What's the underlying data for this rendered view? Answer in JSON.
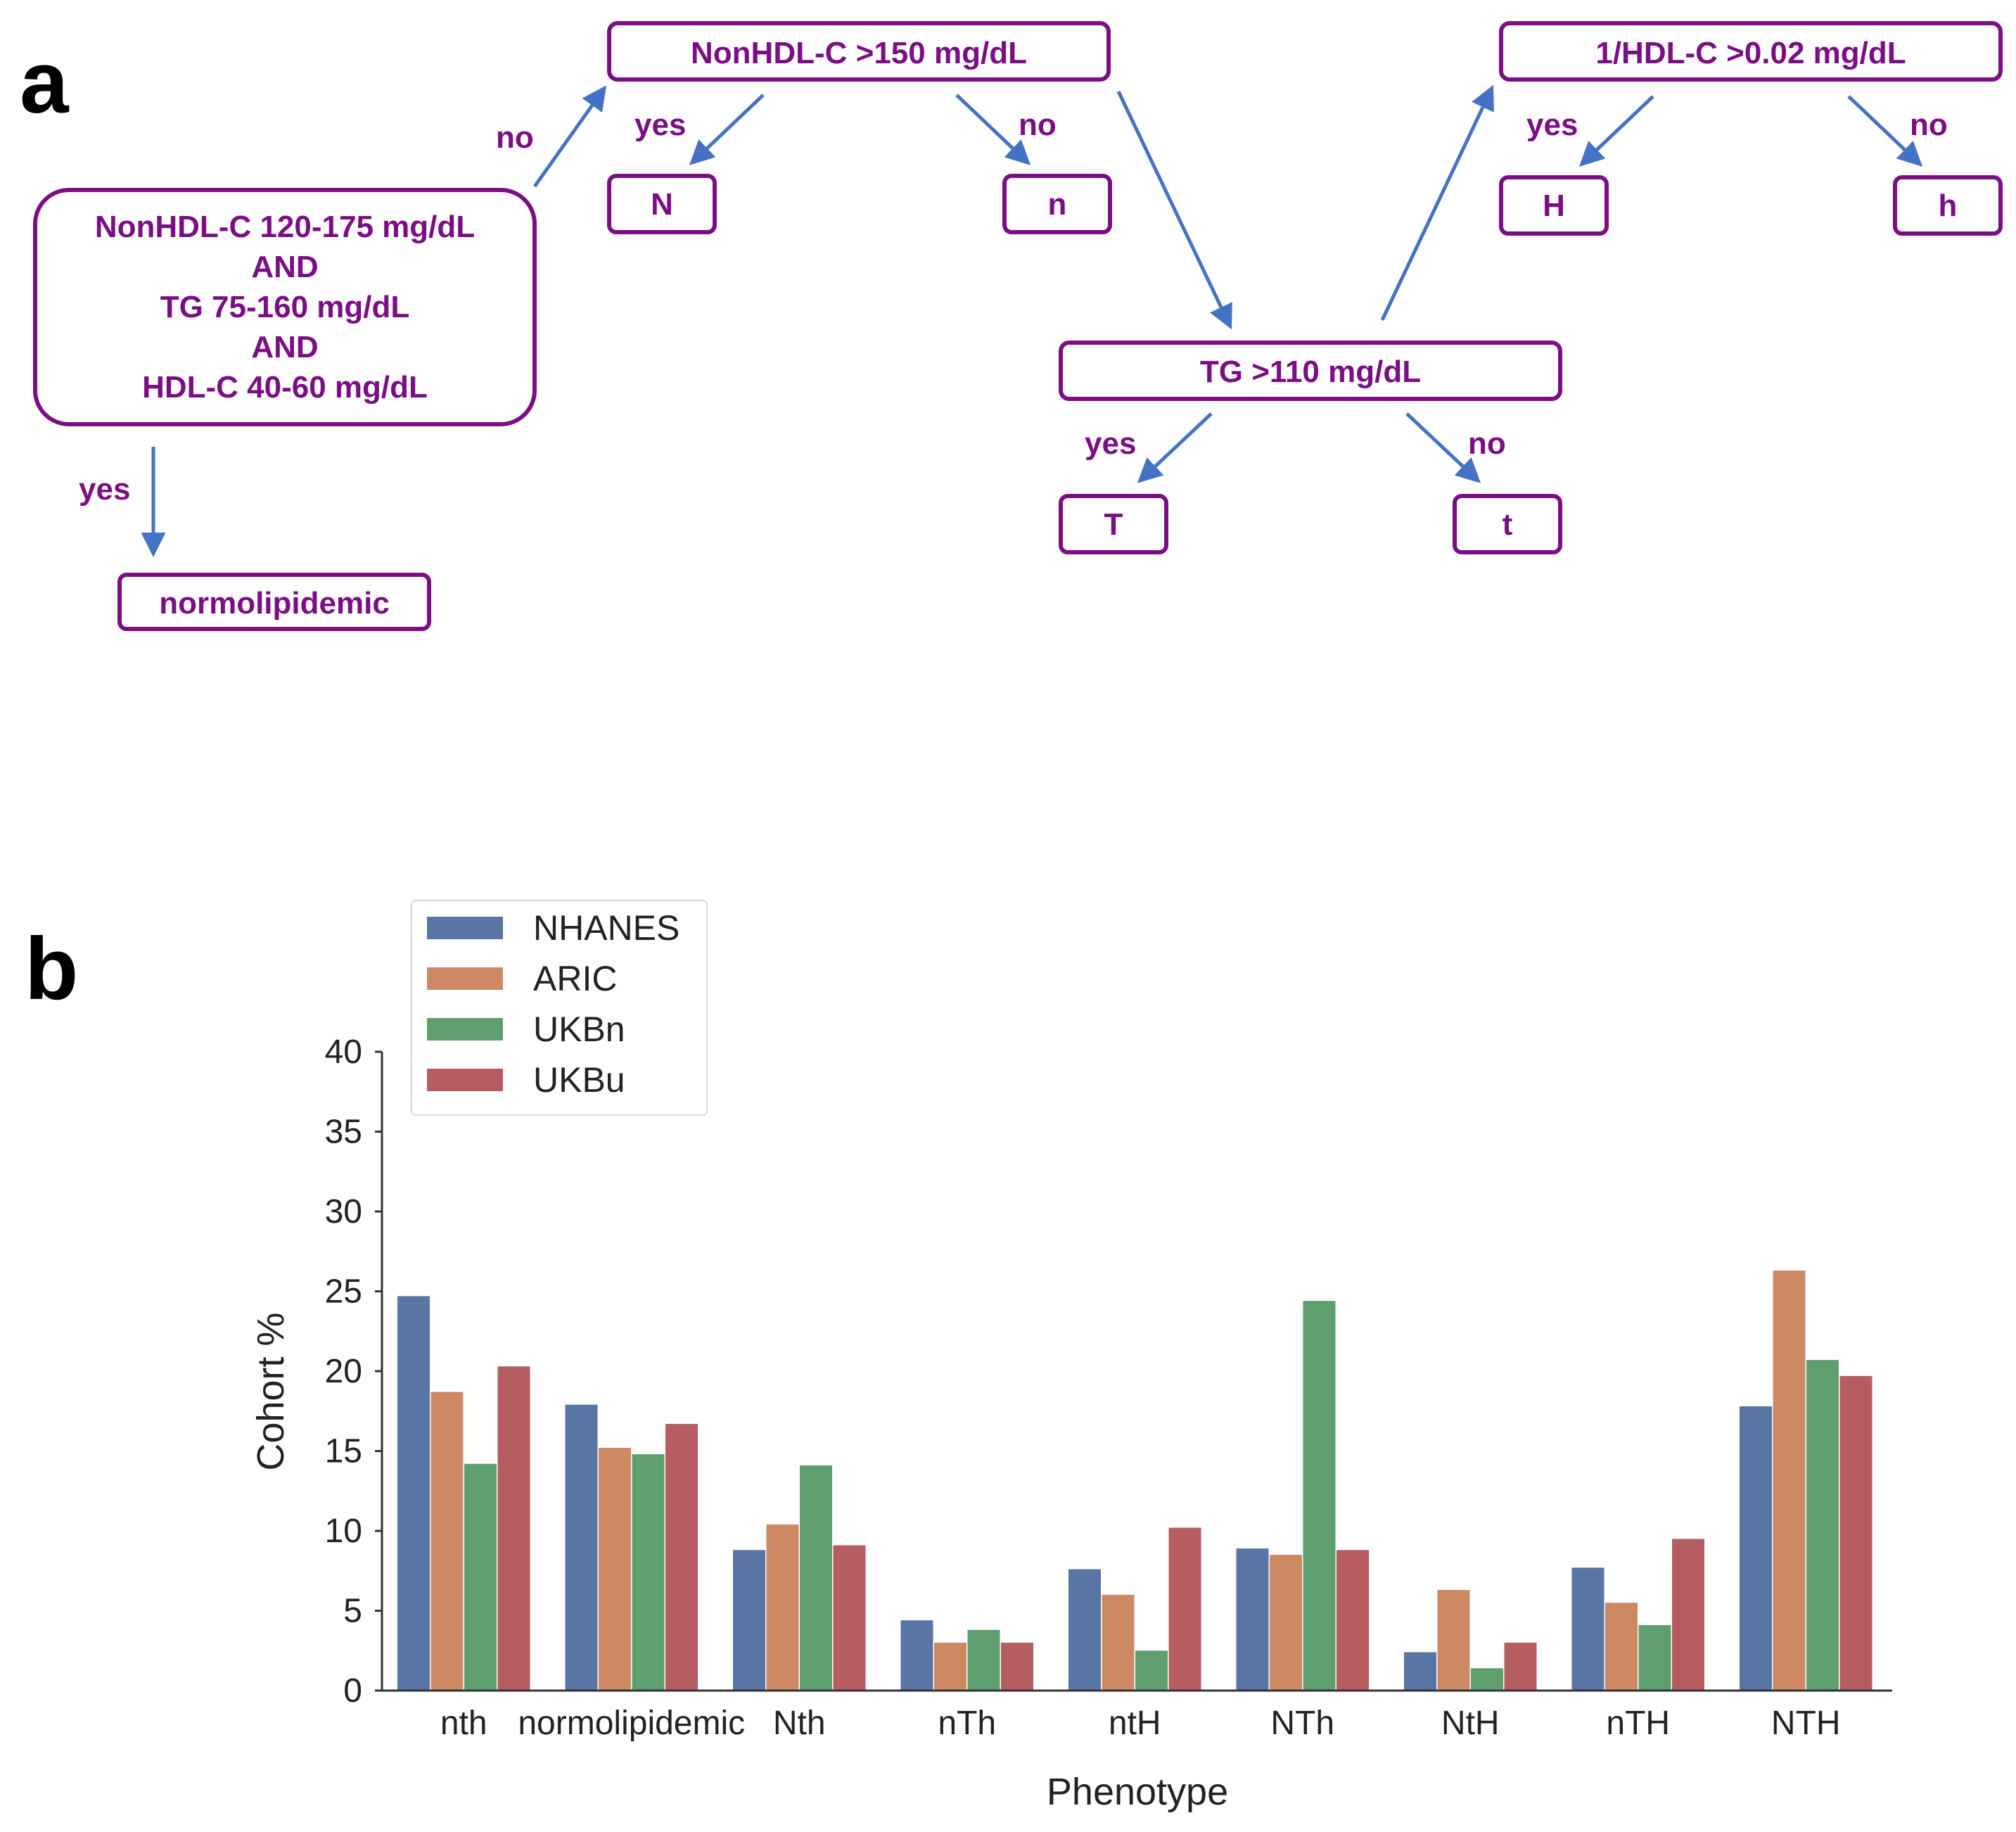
{
  "panels": {
    "a": "a",
    "b": "b"
  },
  "flowchart": {
    "nodes": {
      "root": {
        "lines": [
          "NonHDL-C 120-175 mg/dL",
          "AND",
          "TG 75-160 mg/dL",
          "AND",
          "HDL-C 40-60 mg/dL"
        ]
      },
      "normo": {
        "text": "normolipidemic"
      },
      "nonhdl": {
        "text": "NonHDL-C >150 mg/dL"
      },
      "N": {
        "text": "N"
      },
      "n": {
        "text": "n"
      },
      "tg": {
        "text": "TG >110 mg/dL"
      },
      "T": {
        "text": "T"
      },
      "t": {
        "text": "t"
      },
      "hdl": {
        "text": "1/HDL-C >0.02 mg/dL"
      },
      "H": {
        "text": "H"
      },
      "h": {
        "text": "h"
      }
    },
    "edge_labels": {
      "root_no": "no",
      "root_yes": "yes",
      "nonhdl_yes": "yes",
      "nonhdl_no": "no",
      "tg_yes": "yes",
      "tg_no": "no",
      "hdl_yes": "yes",
      "hdl_no": "no"
    }
  },
  "colors": {
    "node_text": "#7b0e84",
    "arrow": "#4472c4",
    "NHANES": "#5875a4",
    "ARIC": "#cc8963",
    "UKBn": "#5f9e6e",
    "UKBu": "#b55d60"
  },
  "chart_data": {
    "type": "bar",
    "title": "",
    "xlabel": "Phenotype",
    "ylabel": "Cohort %",
    "ylim": [
      0,
      40
    ],
    "yticks": [
      0,
      5,
      10,
      15,
      20,
      25,
      30,
      35,
      40
    ],
    "categories": [
      "nth",
      "normolipidemic",
      "Nth",
      "nTh",
      "ntH",
      "NTh",
      "NtH",
      "nTH",
      "NTH"
    ],
    "legend_position": "top-left",
    "series": [
      {
        "name": "NHANES",
        "values": [
          24.7,
          17.9,
          8.8,
          4.4,
          7.6,
          8.9,
          2.4,
          7.7,
          17.8
        ]
      },
      {
        "name": "ARIC",
        "values": [
          18.7,
          15.2,
          10.4,
          3.0,
          6.0,
          8.5,
          6.3,
          5.5,
          26.3
        ]
      },
      {
        "name": "UKBn",
        "values": [
          14.2,
          14.8,
          14.1,
          3.8,
          2.5,
          24.4,
          1.4,
          4.1,
          20.7
        ]
      },
      {
        "name": "UKBu",
        "values": [
          20.3,
          16.7,
          9.1,
          3.0,
          10.2,
          8.8,
          3.0,
          9.5,
          19.7
        ]
      }
    ]
  }
}
